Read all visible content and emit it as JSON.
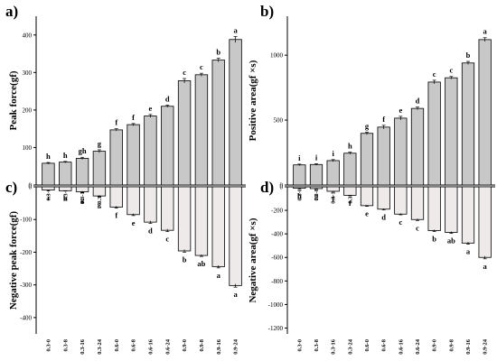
{
  "chart_data": [
    {
      "panel_label": "a)",
      "type": "bar",
      "ylabel": "Peak force(gf)",
      "ylim": [
        0,
        450
      ],
      "yticks": [
        0,
        100,
        200,
        300,
        400
      ],
      "categories": [
        "0.3-0",
        "0.3-8",
        "0.3-16",
        "0.3-24",
        "0.6-0",
        "0.6-8",
        "0.6-16",
        "0.6-24",
        "0.9-0",
        "0.9-8",
        "0.9-16",
        "0.9-24"
      ],
      "values": [
        58,
        61,
        71,
        90,
        147,
        161,
        184,
        210,
        278,
        294,
        333,
        388
      ],
      "errors": [
        2,
        2,
        3,
        4,
        3,
        3,
        4,
        3,
        6,
        4,
        5,
        8
      ],
      "letters": [
        "h",
        "h",
        "gh",
        "g",
        "f",
        "f",
        "e",
        "d",
        "c",
        "c",
        "b",
        "a"
      ],
      "bar_color": "#c8c8c8",
      "letter_position": "above"
    },
    {
      "panel_label": "b)",
      "type": "bar",
      "ylabel": "Positive area(gf ×s)",
      "ylim": [
        0,
        1300
      ],
      "yticks": [
        0,
        500,
        1000
      ],
      "categories": [
        "0.3-0",
        "0.3-8",
        "0.3-16",
        "0.3-24",
        "0.6-0",
        "0.6-8",
        "0.6-16",
        "0.6-24",
        "0.9-0",
        "0.9-8",
        "0.9-16",
        "0.9-24"
      ],
      "values": [
        155,
        158,
        188,
        245,
        398,
        446,
        515,
        590,
        793,
        826,
        940,
        1120
      ],
      "errors": [
        6,
        6,
        8,
        8,
        10,
        14,
        14,
        10,
        14,
        10,
        12,
        15
      ],
      "letters": [
        "i",
        "i",
        "i",
        "h",
        "g",
        "f",
        "e",
        "d",
        "c",
        "c",
        "b",
        "a"
      ],
      "bar_color": "#c8c8c8",
      "letter_position": "above"
    },
    {
      "panel_label": "c)",
      "type": "bar",
      "ylabel": "Negative peak force(gf)",
      "ylim": [
        -450,
        0
      ],
      "yticks": [
        0,
        -100,
        -200,
        -300,
        -400
      ],
      "categories": [
        "0.3-0",
        "0.3-8",
        "0.3-16",
        "0.3-24",
        "0.6-0",
        "0.6-8",
        "0.6-16",
        "0.6-24",
        "0.9-0",
        "0.9-8",
        "0.9-16",
        "0.9-24"
      ],
      "values": [
        -10,
        -12,
        -15,
        -28,
        -62,
        -85,
        -108,
        -133,
        -196,
        -210,
        -244,
        -302
      ],
      "errors": [
        1,
        1,
        2,
        2,
        3,
        3,
        4,
        4,
        4,
        3,
        4,
        5
      ],
      "letters": [
        "i",
        "h",
        "g",
        "g",
        "f",
        "e",
        "d",
        "c",
        "b",
        "ab",
        "a",
        "a"
      ],
      "bar_color": "#eeeaea",
      "letter_position": "below"
    },
    {
      "panel_label": "d)",
      "type": "bar",
      "ylabel": "Negative area(gf ×s)",
      "ylim": [
        -1250,
        0
      ],
      "yticks": [
        0,
        -200,
        -400,
        -600,
        -800,
        -1000,
        -1200
      ],
      "categories": [
        "0.3-0",
        "0.3-8",
        "0.3-16",
        "0.3-24",
        "0.6-0",
        "0.6-8",
        "0.6-16",
        "0.6-24",
        "0.9-0",
        "0.9-8",
        "0.9-16",
        "0.9-24"
      ],
      "values": [
        -12,
        -15,
        -38,
        -72,
        -160,
        -190,
        -232,
        -278,
        -372,
        -388,
        -478,
        -600
      ],
      "errors": [
        2,
        2,
        3,
        4,
        6,
        6,
        6,
        8,
        8,
        8,
        10,
        12
      ],
      "letters": [
        "h",
        "g",
        "f",
        "f",
        "e",
        "d",
        "c",
        "c",
        "b",
        "ab",
        "a",
        "a"
      ],
      "bar_color": "#eeeaea",
      "letter_position": "below"
    }
  ]
}
